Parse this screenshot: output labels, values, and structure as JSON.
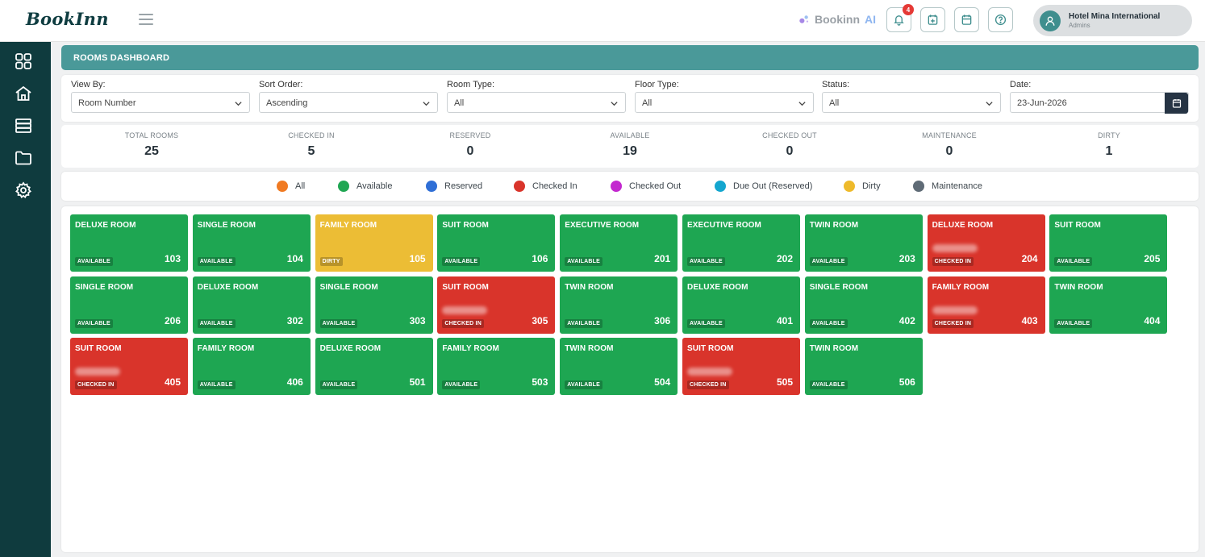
{
  "app": {
    "logo": "BookInn",
    "ai_label": "Bookinn",
    "ai_suffix": "AI",
    "notification_count": "4",
    "hotel_name": "Hotel Mina International",
    "user_role": "Admins"
  },
  "page": {
    "title": "ROOMS DASHBOARD"
  },
  "filters": [
    {
      "label": "View By:",
      "value": "Room Number"
    },
    {
      "label": "Sort Order:",
      "value": "Ascending"
    },
    {
      "label": "Room Type:",
      "value": "All"
    },
    {
      "label": "Floor Type:",
      "value": "All"
    },
    {
      "label": "Status:",
      "value": "All"
    },
    {
      "label": "Date:",
      "value": "23-Jun-2026"
    }
  ],
  "stats": [
    {
      "label": "TOTAL ROOMS",
      "value": "25"
    },
    {
      "label": "CHECKED IN",
      "value": "5"
    },
    {
      "label": "RESERVED",
      "value": "0"
    },
    {
      "label": "AVAILABLE",
      "value": "19"
    },
    {
      "label": "CHECKED OUT",
      "value": "0"
    },
    {
      "label": "MAINTENANCE",
      "value": "0"
    },
    {
      "label": "DIRTY",
      "value": "1"
    }
  ],
  "legend": [
    {
      "label": "All",
      "color": "#f07a22"
    },
    {
      "label": "Available",
      "color": "#20a653"
    },
    {
      "label": "Reserved",
      "color": "#2f6fd6"
    },
    {
      "label": "Checked In",
      "color": "#d9342b"
    },
    {
      "label": "Checked Out",
      "color": "#c328cf"
    },
    {
      "label": "Due Out (Reserved)",
      "color": "#14a6cf"
    },
    {
      "label": "Dirty",
      "color": "#eeba2b"
    },
    {
      "label": "Maintenance",
      "color": "#5f6b76"
    }
  ],
  "colors": {
    "available": "#1ea652",
    "checked_in": "#d9342b",
    "dirty": "#ecbd35",
    "sidebar": "#0f3b3e",
    "header": "#4a9999"
  },
  "rooms": [
    {
      "type": "DELUXE ROOM",
      "status": "AVAILABLE",
      "number": "103"
    },
    {
      "type": "SINGLE ROOM",
      "status": "AVAILABLE",
      "number": "104"
    },
    {
      "type": "FAMILY ROOM",
      "status": "DIRTY",
      "number": "105"
    },
    {
      "type": "SUIT ROOM",
      "status": "AVAILABLE",
      "number": "106"
    },
    {
      "type": "EXECUTIVE ROOM",
      "status": "AVAILABLE",
      "number": "201"
    },
    {
      "type": "EXECUTIVE ROOM",
      "status": "AVAILABLE",
      "number": "202"
    },
    {
      "type": "TWIN ROOM",
      "status": "AVAILABLE",
      "number": "203"
    },
    {
      "type": "DELUXE ROOM",
      "status": "CHECKED IN",
      "number": "204"
    },
    {
      "type": "SUIT ROOM",
      "status": "AVAILABLE",
      "number": "205"
    },
    {
      "type": "SINGLE ROOM",
      "status": "AVAILABLE",
      "number": "206"
    },
    {
      "type": "DELUXE ROOM",
      "status": "AVAILABLE",
      "number": "302"
    },
    {
      "type": "SINGLE ROOM",
      "status": "AVAILABLE",
      "number": "303"
    },
    {
      "type": "SUIT ROOM",
      "status": "CHECKED IN",
      "number": "305"
    },
    {
      "type": "TWIN ROOM",
      "status": "AVAILABLE",
      "number": "306"
    },
    {
      "type": "DELUXE ROOM",
      "status": "AVAILABLE",
      "number": "401"
    },
    {
      "type": "SINGLE ROOM",
      "status": "AVAILABLE",
      "number": "402"
    },
    {
      "type": "FAMILY ROOM",
      "status": "CHECKED IN",
      "number": "403"
    },
    {
      "type": "TWIN ROOM",
      "status": "AVAILABLE",
      "number": "404"
    },
    {
      "type": "SUIT ROOM",
      "status": "CHECKED IN",
      "number": "405"
    },
    {
      "type": "FAMILY ROOM",
      "status": "AVAILABLE",
      "number": "406"
    },
    {
      "type": "DELUXE ROOM",
      "status": "AVAILABLE",
      "number": "501"
    },
    {
      "type": "FAMILY ROOM",
      "status": "AVAILABLE",
      "number": "503"
    },
    {
      "type": "TWIN ROOM",
      "status": "AVAILABLE",
      "number": "504"
    },
    {
      "type": "SUIT ROOM",
      "status": "CHECKED IN",
      "number": "505"
    },
    {
      "type": "TWIN ROOM",
      "status": "AVAILABLE",
      "number": "506"
    }
  ]
}
